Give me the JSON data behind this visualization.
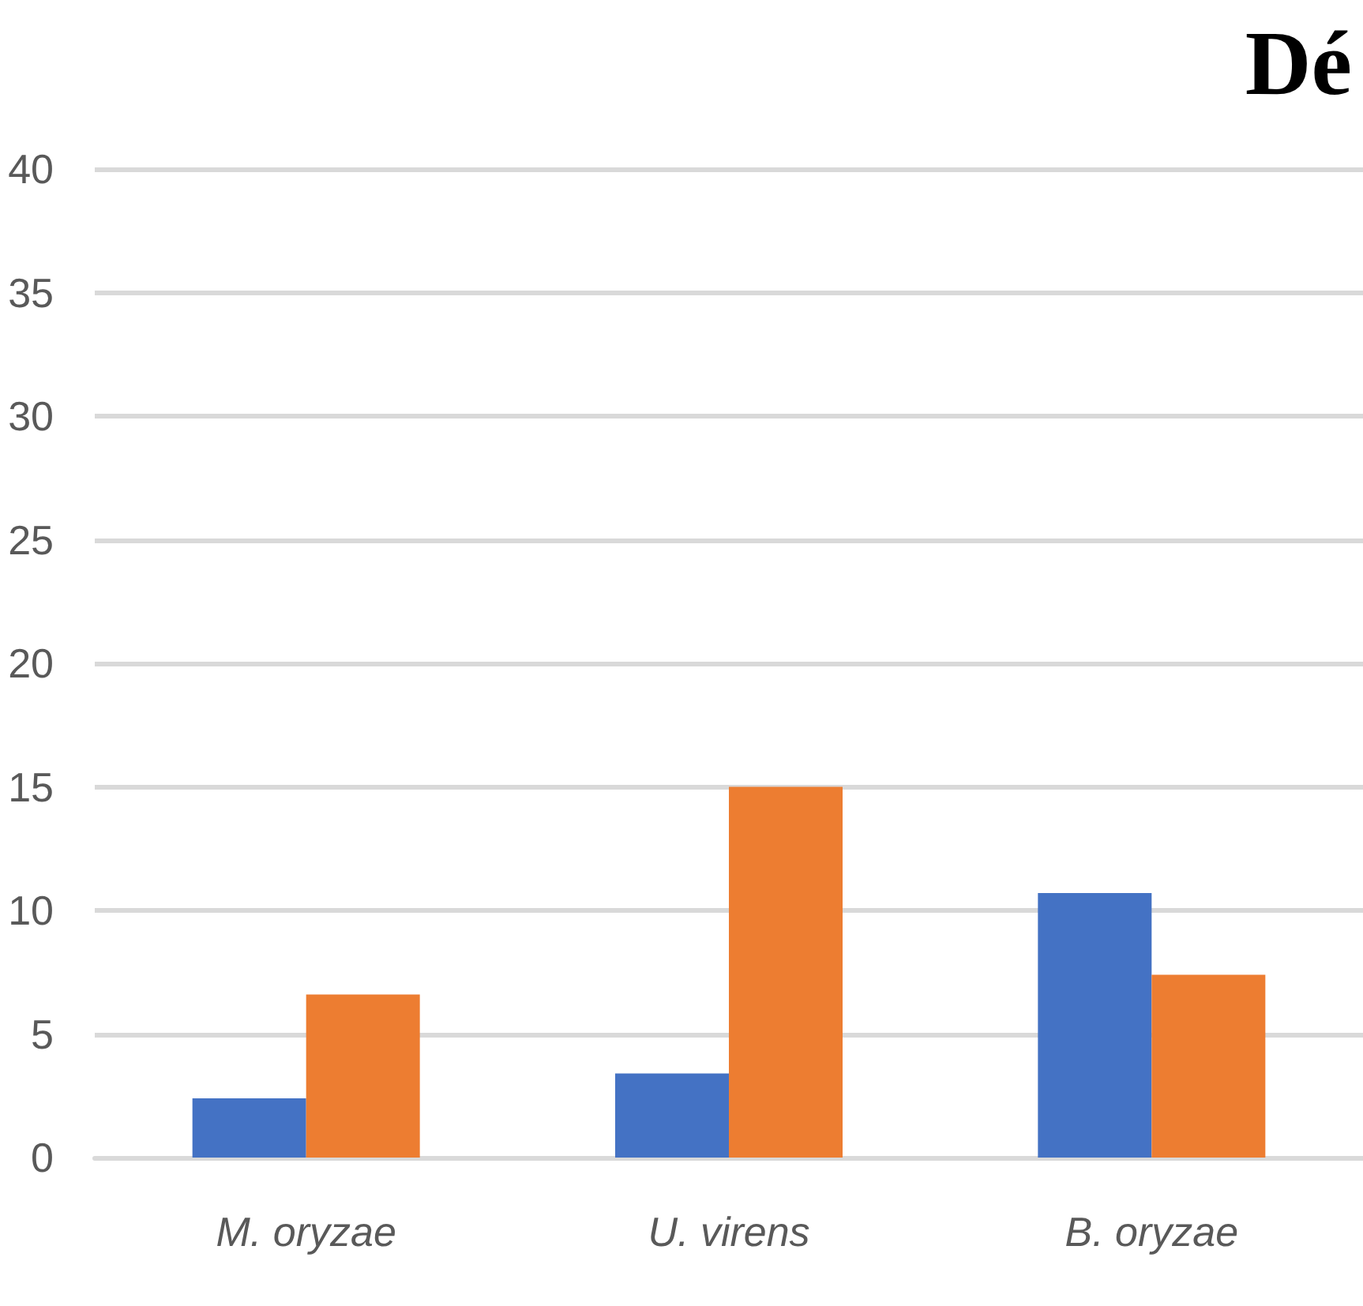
{
  "chart_data": {
    "type": "bar",
    "title": "Dé",
    "categories": [
      "M. oryzae",
      "U. virens",
      "B. oryzae"
    ],
    "series": [
      {
        "color": "#4472c4",
        "values": [
          2.4,
          3.4,
          10.7
        ]
      },
      {
        "color": "#ed7d31",
        "values": [
          6.6,
          15.0,
          7.4
        ]
      }
    ],
    "ylim": [
      0,
      40
    ],
    "yticks": [
      0,
      5,
      10,
      15,
      20,
      25,
      30,
      35,
      40
    ],
    "grid": "y"
  }
}
